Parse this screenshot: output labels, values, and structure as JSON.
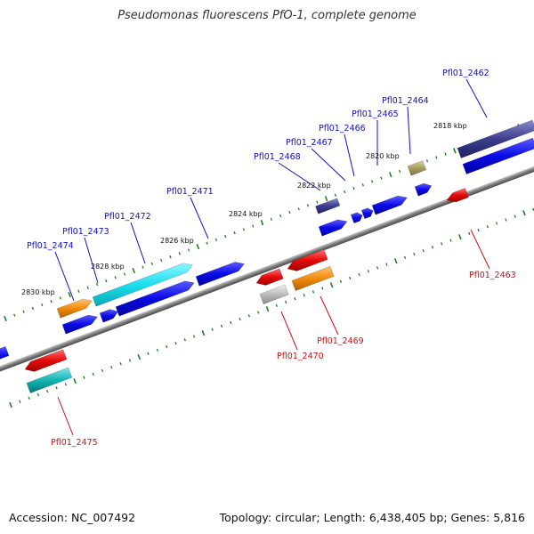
{
  "title": "Pseudomonas fluorescens PfO-1, complete genome",
  "footer": {
    "accession": "Accession: NC_007492",
    "summary": "Topology: circular; Length: 6,438,405 bp; Genes: 5,816"
  },
  "ticks": [
    "2830 kbp",
    "2828 kbp",
    "2826 kbp",
    "2824 kbp",
    "2822 kbp",
    "2820 kbp",
    "2818 kbp"
  ],
  "genes_top": [
    "Pfl01_2474",
    "Pfl01_2473",
    "Pfl01_2472",
    "Pfl01_2471",
    "Pfl01_2468",
    "Pfl01_2467",
    "Pfl01_2466",
    "Pfl01_2465",
    "Pfl01_2464",
    "Pfl01_2462"
  ],
  "genes_bottom": [
    "Pfl01_2475",
    "Pfl01_2470",
    "Pfl01_2469",
    "Pfl01_2463"
  ],
  "colors": {
    "backbone": "#7a7a7a",
    "tick": "#1e7d1e",
    "blue": "#0a0ae6",
    "cyan": "#19e0ef",
    "orange": "#f08c0c",
    "navy": "#3c3c8c",
    "olive": "#a8a060",
    "red": "#e60a0a",
    "teal": "#13b4b4",
    "grey": "#bcbcbc",
    "label_blue": "#1010c8",
    "label_red": "#d01010"
  }
}
